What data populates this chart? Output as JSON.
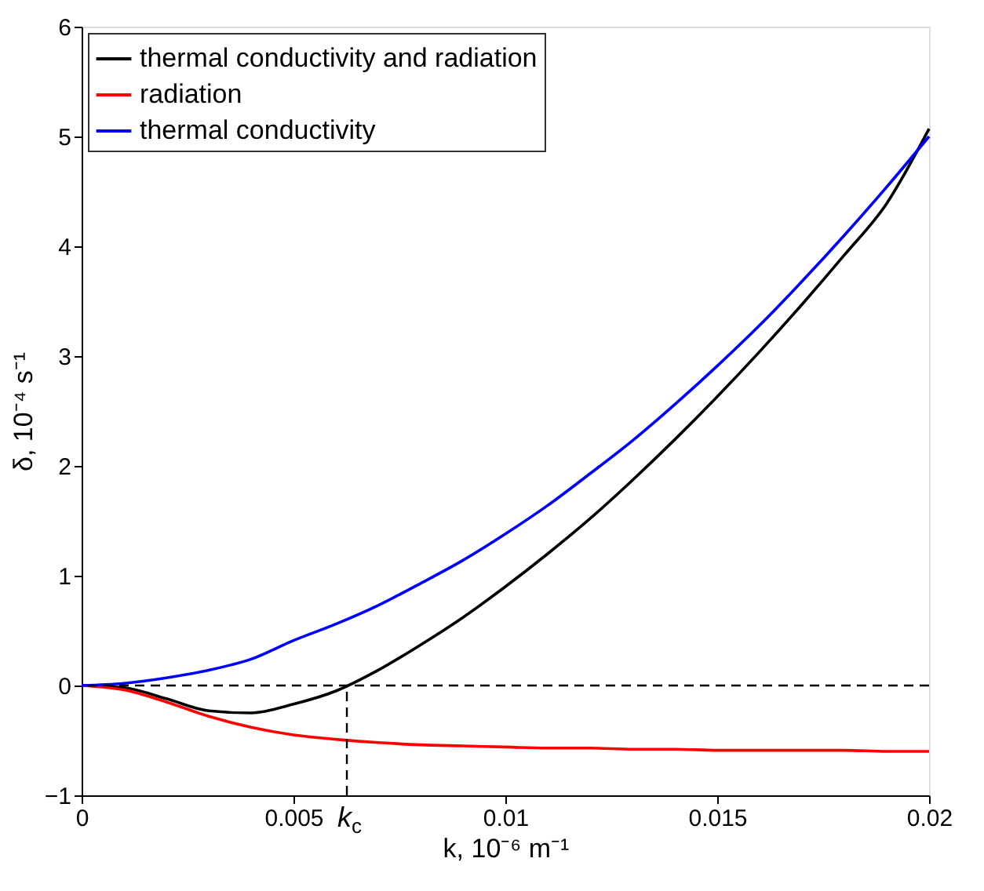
{
  "chart_data": {
    "type": "line",
    "xlabel": "k, 10⁻⁶ m⁻¹",
    "ylabel": "δ, 10⁻⁴ s⁻¹",
    "x": [
      0,
      0.001,
      0.002,
      0.003,
      0.004,
      0.005,
      0.006,
      0.007,
      0.008,
      0.009,
      0.01,
      0.011,
      0.012,
      0.013,
      0.014,
      0.015,
      0.016,
      0.017,
      0.018,
      0.019,
      0.02
    ],
    "series": [
      {
        "name": "thermal conductivity and radiation",
        "color": "#000000",
        "values": [
          0,
          -0.02,
          -0.12,
          -0.23,
          -0.25,
          -0.17,
          -0.05,
          0.14,
          0.37,
          0.62,
          0.9,
          1.2,
          1.52,
          1.87,
          2.24,
          2.63,
          3.04,
          3.47,
          3.92,
          4.39,
          5.07
        ]
      },
      {
        "name": "radiation",
        "color": "#ff0000",
        "values": [
          0,
          -0.04,
          -0.15,
          -0.28,
          -0.38,
          -0.45,
          -0.49,
          -0.52,
          -0.54,
          -0.55,
          -0.56,
          -0.57,
          -0.57,
          -0.58,
          -0.58,
          -0.59,
          -0.59,
          -0.59,
          -0.59,
          -0.6,
          -0.6
        ]
      },
      {
        "name": "thermal conductivity",
        "color": "#0000ff",
        "values": [
          0,
          0.02,
          0.07,
          0.14,
          0.24,
          0.41,
          0.56,
          0.73,
          0.93,
          1.14,
          1.38,
          1.64,
          1.93,
          2.23,
          2.56,
          2.91,
          3.28,
          3.68,
          4.1,
          4.54,
          5.0
        ]
      }
    ],
    "xlim": [
      0,
      0.02
    ],
    "xticks": [
      0,
      0.005,
      0.01,
      0.015,
      0.02
    ],
    "ylim": [
      -1,
      6
    ],
    "yticks": [
      -1,
      0,
      1,
      2,
      3,
      4,
      5,
      6
    ],
    "ref_lines": [
      {
        "axis": "y",
        "value": 0,
        "color": "#000000",
        "line_style": "dashed"
      },
      {
        "axis": "x",
        "value": 0.00626,
        "label": "k$_{c}$",
        "color": "#000000",
        "line_style": "dashed"
      }
    ],
    "legend": "top left",
    "grid": false,
    "marker": "none",
    "line_style": "solid"
  }
}
